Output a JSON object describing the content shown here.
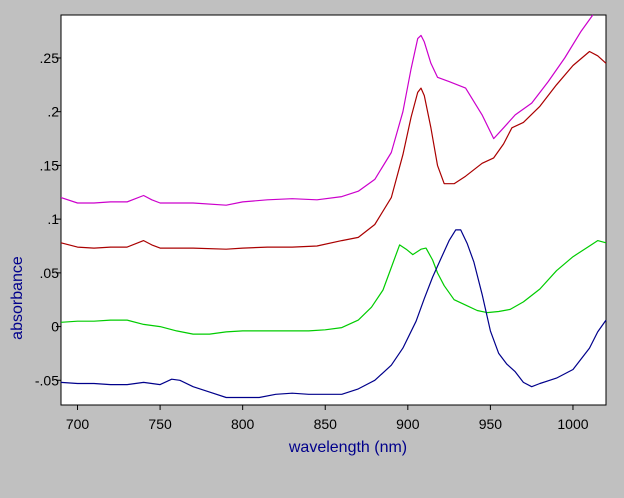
{
  "chart_data": {
    "type": "line",
    "title": "",
    "xlabel": "wavelength (nm)",
    "ylabel": "absorbance",
    "xlim": [
      690,
      1020
    ],
    "ylim": [
      -0.073,
      0.29
    ],
    "x_ticks": [
      700,
      750,
      800,
      850,
      900,
      950,
      1000
    ],
    "x_tick_labels": [
      "700",
      "750",
      "800",
      "850",
      "900",
      "950",
      "1000"
    ],
    "y_ticks": [
      -0.05,
      0,
      0.05,
      0.1,
      0.15,
      0.2,
      0.25
    ],
    "y_tick_labels": [
      "-.05",
      "0",
      ".05",
      ".1",
      ".15",
      ".2",
      ".25"
    ],
    "grid": false,
    "legend": "none",
    "series": [
      {
        "color": "#cc00cc",
        "points": [
          [
            690,
            0.12
          ],
          [
            700,
            0.115
          ],
          [
            710,
            0.115
          ],
          [
            720,
            0.116
          ],
          [
            730,
            0.116
          ],
          [
            740,
            0.122
          ],
          [
            745,
            0.118
          ],
          [
            750,
            0.115
          ],
          [
            770,
            0.115
          ],
          [
            790,
            0.113
          ],
          [
            800,
            0.116
          ],
          [
            815,
            0.118
          ],
          [
            830,
            0.119
          ],
          [
            845,
            0.118
          ],
          [
            860,
            0.121
          ],
          [
            870,
            0.126
          ],
          [
            880,
            0.137
          ],
          [
            890,
            0.162
          ],
          [
            897,
            0.2
          ],
          [
            902,
            0.24
          ],
          [
            906,
            0.268
          ],
          [
            908,
            0.271
          ],
          [
            910,
            0.265
          ],
          [
            914,
            0.245
          ],
          [
            918,
            0.232
          ],
          [
            925,
            0.228
          ],
          [
            935,
            0.222
          ],
          [
            945,
            0.197
          ],
          [
            952,
            0.175
          ],
          [
            958,
            0.185
          ],
          [
            965,
            0.197
          ],
          [
            975,
            0.208
          ],
          [
            985,
            0.228
          ],
          [
            995,
            0.25
          ],
          [
            1005,
            0.275
          ],
          [
            1012,
            0.29
          ]
        ]
      },
      {
        "color": "#aa0000",
        "points": [
          [
            690,
            0.078
          ],
          [
            700,
            0.074
          ],
          [
            710,
            0.073
          ],
          [
            720,
            0.074
          ],
          [
            730,
            0.074
          ],
          [
            740,
            0.08
          ],
          [
            745,
            0.076
          ],
          [
            750,
            0.073
          ],
          [
            770,
            0.073
          ],
          [
            790,
            0.072
          ],
          [
            800,
            0.073
          ],
          [
            815,
            0.074
          ],
          [
            830,
            0.074
          ],
          [
            845,
            0.075
          ],
          [
            860,
            0.08
          ],
          [
            870,
            0.083
          ],
          [
            880,
            0.095
          ],
          [
            890,
            0.12
          ],
          [
            897,
            0.16
          ],
          [
            902,
            0.195
          ],
          [
            906,
            0.218
          ],
          [
            908,
            0.222
          ],
          [
            910,
            0.215
          ],
          [
            914,
            0.185
          ],
          [
            918,
            0.15
          ],
          [
            922,
            0.133
          ],
          [
            928,
            0.133
          ],
          [
            935,
            0.14
          ],
          [
            945,
            0.152
          ],
          [
            952,
            0.157
          ],
          [
            958,
            0.17
          ],
          [
            963,
            0.185
          ],
          [
            970,
            0.19
          ],
          [
            980,
            0.205
          ],
          [
            990,
            0.225
          ],
          [
            1000,
            0.243
          ],
          [
            1010,
            0.256
          ],
          [
            1015,
            0.252
          ],
          [
            1020,
            0.245
          ]
        ]
      },
      {
        "color": "#00cc00",
        "points": [
          [
            690,
            0.004
          ],
          [
            700,
            0.005
          ],
          [
            710,
            0.005
          ],
          [
            720,
            0.006
          ],
          [
            730,
            0.006
          ],
          [
            740,
            0.002
          ],
          [
            750,
            0.0
          ],
          [
            760,
            -0.004
          ],
          [
            770,
            -0.007
          ],
          [
            780,
            -0.007
          ],
          [
            790,
            -0.005
          ],
          [
            800,
            -0.004
          ],
          [
            810,
            -0.004
          ],
          [
            820,
            -0.004
          ],
          [
            830,
            -0.004
          ],
          [
            840,
            -0.004
          ],
          [
            850,
            -0.003
          ],
          [
            860,
            -0.001
          ],
          [
            870,
            0.006
          ],
          [
            878,
            0.018
          ],
          [
            885,
            0.034
          ],
          [
            890,
            0.055
          ],
          [
            895,
            0.076
          ],
          [
            899,
            0.072
          ],
          [
            903,
            0.067
          ],
          [
            908,
            0.072
          ],
          [
            911,
            0.073
          ],
          [
            915,
            0.062
          ],
          [
            918,
            0.05
          ],
          [
            922,
            0.038
          ],
          [
            928,
            0.025
          ],
          [
            935,
            0.02
          ],
          [
            942,
            0.015
          ],
          [
            948,
            0.013
          ],
          [
            955,
            0.014
          ],
          [
            962,
            0.016
          ],
          [
            970,
            0.023
          ],
          [
            980,
            0.035
          ],
          [
            990,
            0.052
          ],
          [
            1000,
            0.065
          ],
          [
            1010,
            0.075
          ],
          [
            1015,
            0.08
          ],
          [
            1020,
            0.078
          ]
        ]
      },
      {
        "color": "#00008b",
        "points": [
          [
            690,
            -0.052
          ],
          [
            700,
            -0.053
          ],
          [
            710,
            -0.053
          ],
          [
            720,
            -0.054
          ],
          [
            730,
            -0.054
          ],
          [
            740,
            -0.052
          ],
          [
            750,
            -0.054
          ],
          [
            757,
            -0.049
          ],
          [
            762,
            -0.05
          ],
          [
            770,
            -0.056
          ],
          [
            780,
            -0.061
          ],
          [
            790,
            -0.066
          ],
          [
            800,
            -0.066
          ],
          [
            810,
            -0.066
          ],
          [
            820,
            -0.063
          ],
          [
            830,
            -0.062
          ],
          [
            840,
            -0.063
          ],
          [
            850,
            -0.063
          ],
          [
            860,
            -0.063
          ],
          [
            870,
            -0.058
          ],
          [
            880,
            -0.05
          ],
          [
            890,
            -0.036
          ],
          [
            897,
            -0.02
          ],
          [
            905,
            0.005
          ],
          [
            910,
            0.026
          ],
          [
            915,
            0.046
          ],
          [
            920,
            0.063
          ],
          [
            925,
            0.08
          ],
          [
            929,
            0.09
          ],
          [
            932,
            0.09
          ],
          [
            936,
            0.077
          ],
          [
            940,
            0.06
          ],
          [
            945,
            0.03
          ],
          [
            950,
            -0.004
          ],
          [
            955,
            -0.025
          ],
          [
            960,
            -0.035
          ],
          [
            965,
            -0.042
          ],
          [
            970,
            -0.052
          ],
          [
            975,
            -0.056
          ],
          [
            980,
            -0.053
          ],
          [
            990,
            -0.048
          ],
          [
            1000,
            -0.04
          ],
          [
            1010,
            -0.02
          ],
          [
            1015,
            -0.005
          ],
          [
            1020,
            0.006
          ]
        ]
      }
    ]
  }
}
